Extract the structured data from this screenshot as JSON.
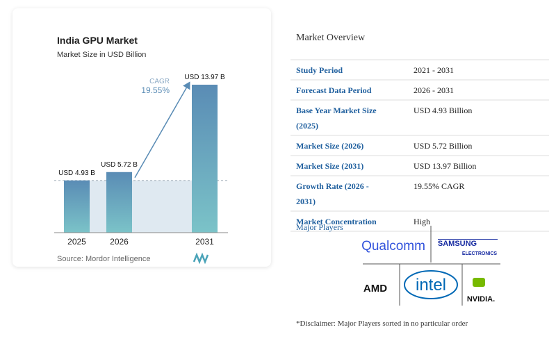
{
  "chart_data": {
    "type": "bar",
    "title": "India GPU Market",
    "subtitle": "Market Size in USD Billion",
    "categories": [
      "2025",
      "2026",
      "2031"
    ],
    "values": [
      4.93,
      5.72,
      13.97
    ],
    "value_labels": [
      "USD 4.93 B",
      "USD 5.72 B",
      "USD 13.97 B"
    ],
    "annotation": {
      "label": "CAGR",
      "value": "19.55%"
    },
    "source": "Source: Mordor Intelligence"
  },
  "overview": {
    "title": "Market Overview",
    "rows": [
      [
        "Study Period",
        "2021 - 2031"
      ],
      [
        "Forecast Data Period",
        "2026 - 2031"
      ],
      [
        "Base Year Market Size (2025)",
        "USD 4.93 Billion"
      ],
      [
        "Market Size (2026)",
        "USD 5.72 Billion"
      ],
      [
        "Market Size (2031)",
        "USD 13.97 Billion"
      ],
      [
        "Growth Rate (2026 - 2031)",
        "19.55% CAGR"
      ],
      [
        "Market Concentration",
        "High"
      ]
    ]
  },
  "players": {
    "title": "Major Players",
    "names": [
      "Qualcomm",
      "SAMSUNG",
      "ELECTRONICS",
      "AMD",
      "intel",
      "NVIDIA."
    ]
  },
  "disclaimer": "*Disclaimer: Major Players sorted in no particular order"
}
